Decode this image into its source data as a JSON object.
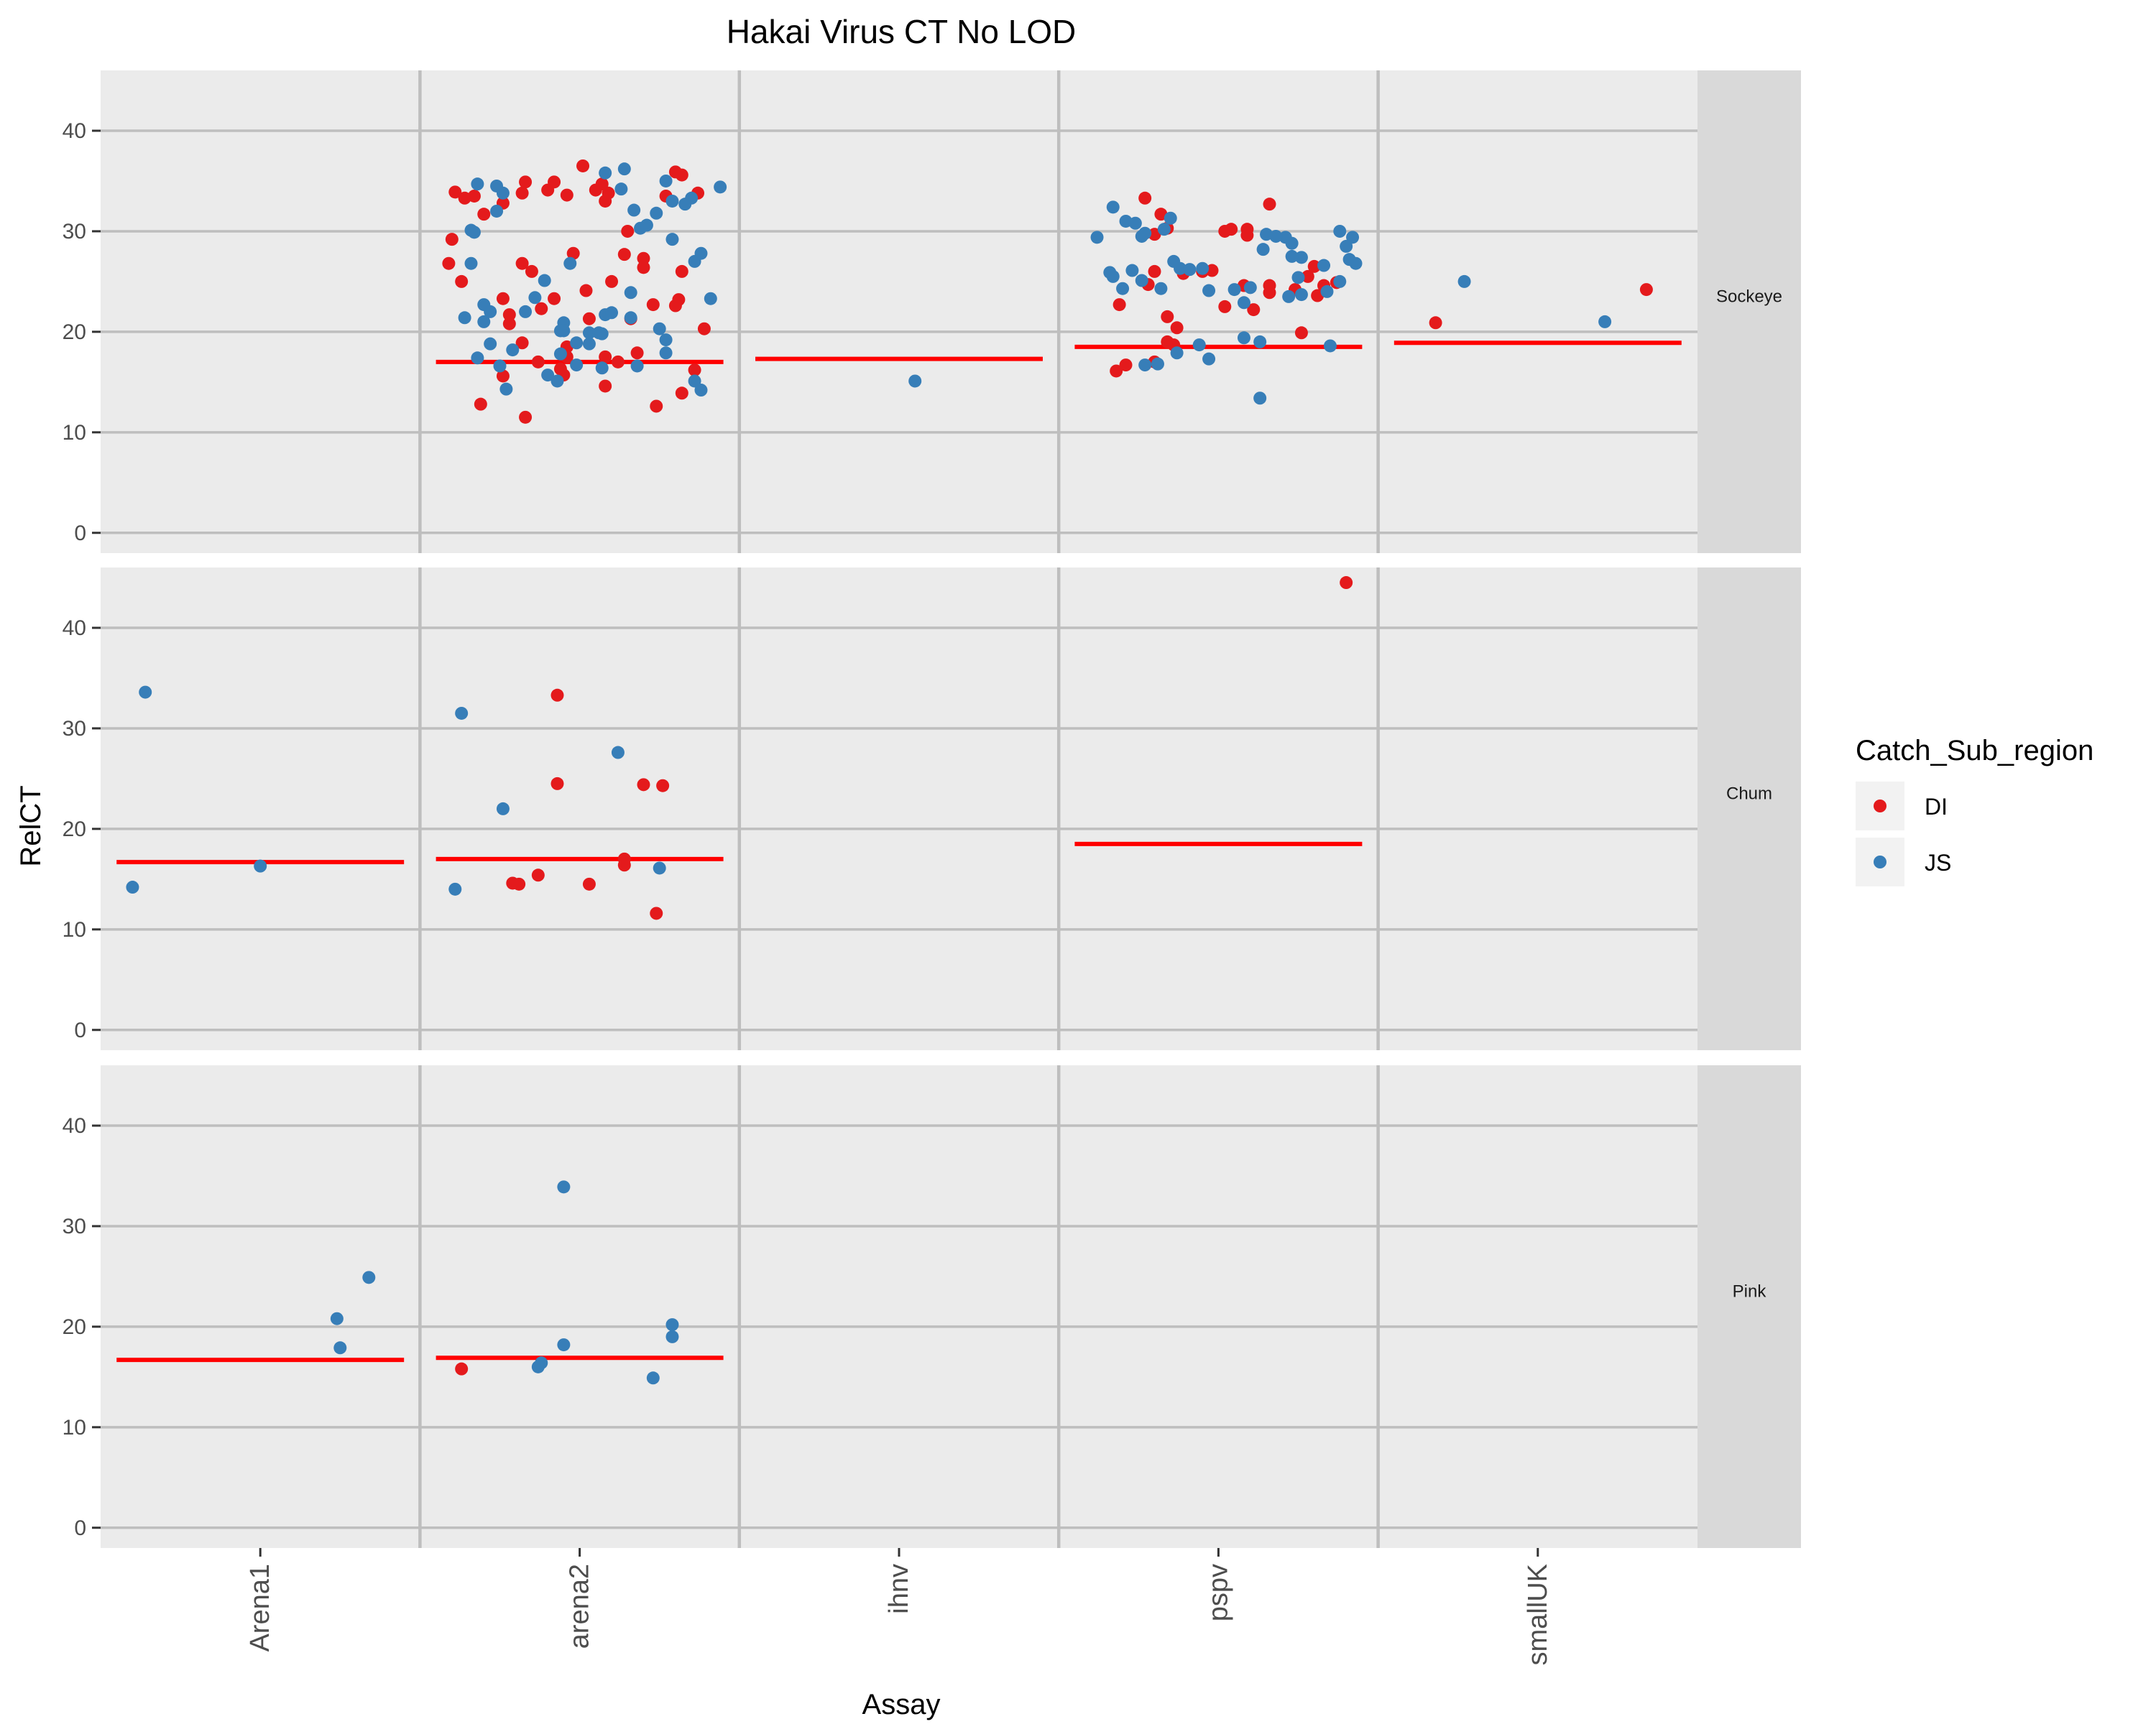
{
  "chart_data": {
    "type": "scatter",
    "title": "Hakai Virus CT No LOD",
    "xlabel": "Assay",
    "ylabel": "RelCT",
    "ylim": [
      0,
      45
    ],
    "yticks": [
      0,
      10,
      20,
      30,
      40
    ],
    "categories": [
      "Arena1",
      "arena2",
      "ihnv",
      "pspv",
      "smallUK"
    ],
    "facets": [
      "Sockeye",
      "Chum",
      "Pink"
    ],
    "legend": {
      "title": "Catch_Sub_region",
      "position": "right",
      "entries": [
        {
          "label": "DI",
          "color": "#E41A1C"
        },
        {
          "label": "JS",
          "color": "#377EB8"
        }
      ]
    },
    "colors": {
      "DI": "#E41A1C",
      "JS": "#377EB8",
      "threshold": "#FF0000",
      "panel": "#EBEBEB",
      "grid": "#BEBEBE",
      "strip": "#D9D9D9"
    },
    "threshold_lines": [
      {
        "facet": "Sockeye",
        "category": "arena2",
        "y": 17.0
      },
      {
        "facet": "Sockeye",
        "category": "ihnv",
        "y": 17.3
      },
      {
        "facet": "Sockeye",
        "category": "pspv",
        "y": 18.5
      },
      {
        "facet": "Sockeye",
        "category": "smallUK",
        "y": 18.9
      },
      {
        "facet": "Chum",
        "category": "Arena1",
        "y": 16.7
      },
      {
        "facet": "Chum",
        "category": "arena2",
        "y": 17.0
      },
      {
        "facet": "Chum",
        "category": "pspv",
        "y": 18.5
      },
      {
        "facet": "Pink",
        "category": "Arena1",
        "y": 16.7
      },
      {
        "facet": "Pink",
        "category": "arena2",
        "y": 16.9
      }
    ],
    "points": {
      "Sockeye": {
        "arena2": {
          "DI": [
            33.9,
            33.3,
            33.5,
            31.7,
            32.8,
            33.8,
            34.9,
            34.1,
            34.9,
            33.6,
            36.5,
            34.1,
            34.7,
            33.0,
            33.8,
            35.9,
            35.6,
            33.5,
            33.8,
            29.2,
            26.8,
            25.0,
            23.3,
            21.7,
            20.8,
            26.8,
            26.0,
            23.3,
            22.3,
            27.8,
            24.1,
            21.3,
            21.3,
            27.7,
            25.0,
            27.3,
            26.4,
            30.0,
            22.7,
            23.2,
            22.6,
            26.0,
            20.3,
            18.9,
            15.6,
            12.8,
            11.5,
            14.6,
            17.5,
            18.5,
            17.5,
            17.0,
            17.9,
            12.6,
            13.9,
            16.2,
            15.7,
            16.3,
            17.0
          ],
          "DI_x": [
            0.11,
            0.14,
            0.17,
            0.2,
            0.26,
            0.32,
            0.33,
            0.4,
            0.42,
            0.46,
            0.51,
            0.55,
            0.57,
            0.58,
            0.59,
            0.8,
            0.82,
            0.77,
            0.87,
            0.1,
            0.09,
            0.13,
            0.26,
            0.28,
            0.28,
            0.32,
            0.35,
            0.42,
            0.38,
            0.48,
            0.52,
            0.53,
            0.66,
            0.64,
            0.6,
            0.7,
            0.7,
            0.65,
            0.73,
            0.81,
            0.8,
            0.82,
            0.89,
            0.32,
            0.26,
            0.19,
            0.33,
            0.58,
            0.46,
            0.46,
            0.58,
            0.62,
            0.68,
            0.74,
            0.82,
            0.86,
            0.45,
            0.44,
            0.37
          ],
          "JS": [
            34.7,
            34.5,
            33.8,
            34.2,
            32.0,
            29.9,
            30.1,
            35.8,
            36.2,
            32.1,
            30.3,
            30.6,
            31.8,
            33.0,
            33.3,
            35.0,
            34.4,
            32.7,
            29.2,
            27.8,
            27.0,
            26.8,
            26.8,
            25.1,
            23.9,
            23.3,
            23.4,
            22.7,
            22.0,
            22.0,
            21.4,
            21.0,
            20.9,
            20.1,
            20.1,
            19.9,
            19.8,
            19.9,
            18.9,
            18.8,
            21.7,
            21.9,
            21.4,
            20.3,
            19.2,
            18.8,
            18.2,
            17.4,
            17.8,
            16.6,
            16.7,
            16.4,
            16.6,
            15.7,
            15.1,
            14.3,
            15.1,
            14.2,
            17.9
          ],
          "JS_x": [
            0.18,
            0.24,
            0.26,
            0.63,
            0.24,
            0.17,
            0.16,
            0.58,
            0.64,
            0.67,
            0.69,
            0.71,
            0.74,
            0.79,
            0.85,
            0.77,
            0.94,
            0.83,
            0.79,
            0.88,
            0.86,
            0.16,
            0.47,
            0.39,
            0.66,
            0.91,
            0.36,
            0.2,
            0.22,
            0.33,
            0.14,
            0.2,
            0.45,
            0.44,
            0.45,
            0.53,
            0.57,
            0.56,
            0.49,
            0.53,
            0.58,
            0.6,
            0.66,
            0.75,
            0.77,
            0.22,
            0.29,
            0.18,
            0.44,
            0.25,
            0.49,
            0.57,
            0.68,
            0.4,
            0.43,
            0.27,
            0.86,
            0.88,
            0.77
          ]
        },
        "ihnv": {
          "JS": [
            15.1
          ],
          "JS_x": [
            0.55
          ]
        },
        "pspv": {
          "DI": [
            33.3,
            31.7,
            30.3,
            29.7,
            30.0,
            30.2,
            30.2,
            29.6,
            32.7,
            26.0,
            25.8,
            24.7,
            26.1,
            26.0,
            24.6,
            23.9,
            22.7,
            22.5,
            22.2,
            21.5,
            20.4,
            19.0,
            18.7,
            16.1,
            16.7,
            17.0,
            24.6,
            24.2,
            23.6,
            24.6,
            24.9,
            25.5,
            26.5,
            19.9
          ],
          "DI_x": [
            0.27,
            0.32,
            0.34,
            0.3,
            0.52,
            0.54,
            0.59,
            0.59,
            0.66,
            0.3,
            0.39,
            0.28,
            0.48,
            0.45,
            0.58,
            0.66,
            0.19,
            0.52,
            0.61,
            0.34,
            0.37,
            0.34,
            0.36,
            0.18,
            0.21,
            0.3,
            0.66,
            0.74,
            0.81,
            0.83,
            0.87,
            0.78,
            0.8,
            0.76
          ],
          "JS": [
            32.4,
            31.0,
            29.4,
            29.5,
            30.8,
            31.3,
            30.2,
            29.8,
            29.4,
            29.5,
            28.2,
            28.8,
            28.5,
            27.4,
            27.0,
            26.3,
            26.2,
            26.3,
            25.5,
            25.9,
            26.1,
            25.1,
            24.3,
            24.3,
            24.1,
            24.2,
            24.4,
            23.5,
            23.7,
            24.0,
            22.9,
            27.5,
            26.6,
            25.4,
            25.0,
            27.2,
            26.8,
            29.7,
            30.0,
            29.4,
            19.4,
            19.0,
            17.9,
            18.7,
            17.3,
            16.8,
            16.7,
            13.4,
            18.6
          ],
          "JS_x": [
            0.17,
            0.21,
            0.12,
            0.26,
            0.24,
            0.35,
            0.33,
            0.27,
            0.71,
            0.68,
            0.64,
            0.73,
            0.9,
            0.76,
            0.36,
            0.38,
            0.41,
            0.45,
            0.17,
            0.16,
            0.23,
            0.26,
            0.2,
            0.32,
            0.47,
            0.55,
            0.6,
            0.72,
            0.76,
            0.84,
            0.58,
            0.73,
            0.83,
            0.75,
            0.88,
            0.91,
            0.93,
            0.65,
            0.88,
            0.92,
            0.58,
            0.63,
            0.37,
            0.44,
            0.47,
            0.31,
            0.27,
            0.63,
            0.85
          ]
        },
        "smallUK": {
          "DI": [
            20.9,
            24.2
          ],
          "DI_x": [
            0.18,
            0.84
          ],
          "JS": [
            25.0,
            21.0
          ],
          "JS_x": [
            0.27,
            0.71
          ]
        }
      },
      "Chum": {
        "Arena1": {
          "JS": [
            33.6,
            14.2,
            16.3
          ],
          "JS_x": [
            0.14,
            0.1,
            0.5
          ]
        },
        "arena2": {
          "DI": [
            33.3,
            24.5,
            24.4,
            24.3,
            17.0,
            16.4,
            15.4,
            14.6,
            14.5,
            14.5,
            11.6
          ],
          "DI_x": [
            0.43,
            0.43,
            0.7,
            0.76,
            0.64,
            0.64,
            0.37,
            0.29,
            0.31,
            0.53,
            0.74
          ],
          "JS": [
            31.5,
            22.0,
            27.6,
            16.1,
            14.0
          ],
          "JS_x": [
            0.13,
            0.26,
            0.62,
            0.75,
            0.11
          ]
        },
        "pspv": {
          "DI": [
            44.5
          ],
          "DI_x": [
            0.9
          ]
        }
      },
      "Pink": {
        "Arena1": {
          "JS": [
            20.8,
            17.9,
            24.9
          ],
          "JS_x": [
            0.74,
            0.75,
            0.84
          ]
        },
        "arena2": {
          "DI": [
            15.8
          ],
          "DI_x": [
            0.13
          ],
          "JS": [
            33.9,
            18.2,
            16.0,
            16.4,
            20.2,
            19.0,
            14.9
          ],
          "JS_x": [
            0.45,
            0.45,
            0.37,
            0.38,
            0.79,
            0.79,
            0.73
          ]
        }
      }
    }
  }
}
